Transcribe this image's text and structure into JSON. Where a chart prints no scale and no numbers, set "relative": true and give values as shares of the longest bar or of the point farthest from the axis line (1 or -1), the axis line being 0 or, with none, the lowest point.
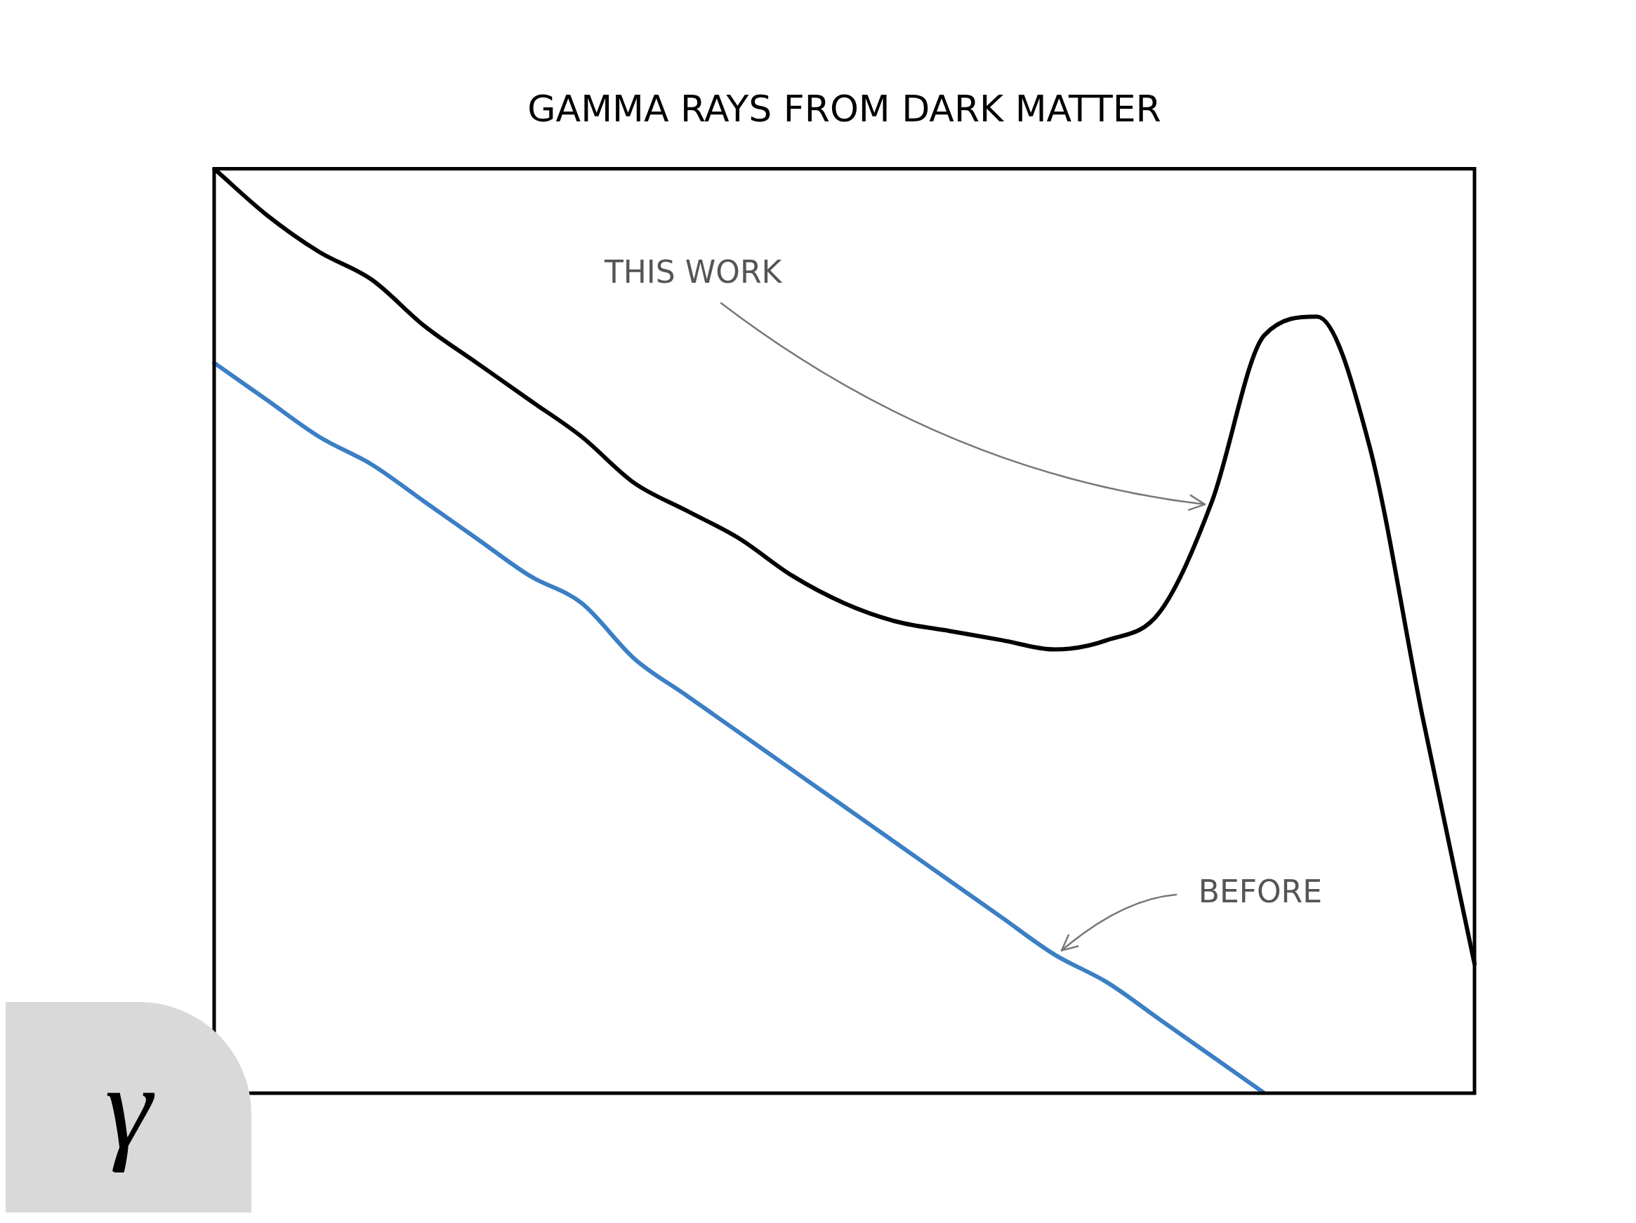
{
  "chart_data": {
    "type": "line",
    "title": "GAMMA RAYS FROM DARK MATTER",
    "relative": true,
    "legend": false,
    "grid": false,
    "marker": "none",
    "line_style": "solid",
    "categories": [
      null,
      null,
      null,
      null,
      null,
      null,
      null,
      null,
      null,
      null,
      null,
      null,
      null,
      null,
      null,
      null,
      null,
      null,
      null,
      null,
      null,
      null,
      null,
      null,
      null
    ],
    "series": [
      {
        "color": "#000000",
        "values": [
          1.0,
          0.95,
          0.91,
          0.88,
          0.83,
          0.79,
          0.75,
          0.71,
          0.66,
          0.63,
          0.6,
          0.56,
          0.53,
          0.51,
          0.5,
          0.49,
          0.48,
          0.49,
          0.52,
          0.64,
          0.82,
          0.84,
          0.7,
          0.41,
          0.14
        ]
      },
      {
        "color": "#3b7fc4",
        "values": [
          0.79,
          0.75,
          0.71,
          0.68,
          0.64,
          0.6,
          0.56,
          0.53,
          0.47,
          0.43,
          0.39,
          0.35,
          0.31,
          0.27,
          0.23,
          0.19,
          0.15,
          0.12,
          0.08,
          0.04,
          0.0,
          null,
          null,
          null,
          null
        ]
      }
    ],
    "annotations": [
      "THIS WORK",
      "BEFORE",
      "γ"
    ]
  }
}
